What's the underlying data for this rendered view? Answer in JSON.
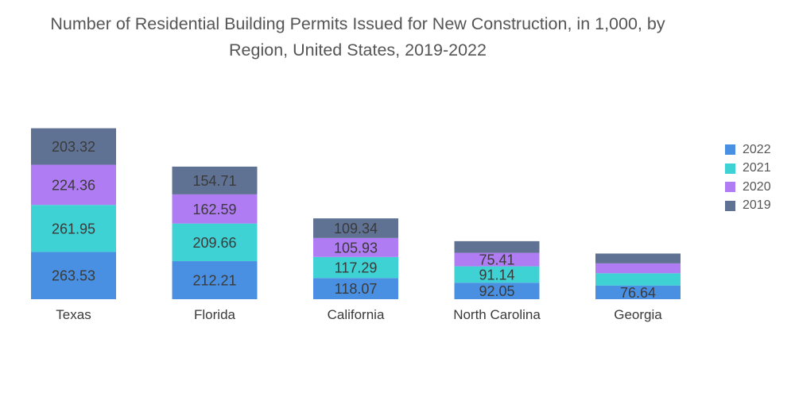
{
  "chart_data": {
    "type": "bar",
    "stacked": true,
    "title": "Number of Residential Building Permits Issued for New Construction, in 1,000, by Region, United States, 2019-2022",
    "title_lines": [
      "Number of Residential Building Permits Issued for New Construction, in 1,000, by",
      "Region, United States, 2019-2022"
    ],
    "categories": [
      "Texas",
      "Florida",
      "California",
      "North Carolina",
      "Georgia"
    ],
    "series": [
      {
        "name": "2022",
        "color": "#4a90e2",
        "values": [
          263.53,
          212.21,
          118.07,
          92.05,
          76.64
        ]
      },
      {
        "name": "2021",
        "color": "#3fd2d4",
        "values": [
          261.95,
          209.66,
          117.29,
          91.14,
          68
        ]
      },
      {
        "name": "2020",
        "color": "#b07cf4",
        "values": [
          224.36,
          162.59,
          105.93,
          75.41,
          55
        ]
      },
      {
        "name": "2019",
        "color": "#5f7293",
        "values": [
          203.32,
          154.71,
          109.34,
          65,
          55
        ]
      }
    ],
    "data_labels": [
      [
        "263.53",
        "261.95",
        "224.36",
        "203.32"
      ],
      [
        "212.21",
        "209.66",
        "162.59",
        "154.71"
      ],
      [
        "118.07",
        "117.29",
        "105.93",
        "109.34"
      ],
      [
        "92.05",
        "91.14",
        "75.41",
        ""
      ],
      [
        "76.64",
        "",
        "",
        ""
      ]
    ],
    "legend_order": [
      "2022",
      "2021",
      "2020",
      "2019"
    ],
    "legend_position": "right",
    "ylim": [
      0,
      1000
    ],
    "grid": false
  }
}
